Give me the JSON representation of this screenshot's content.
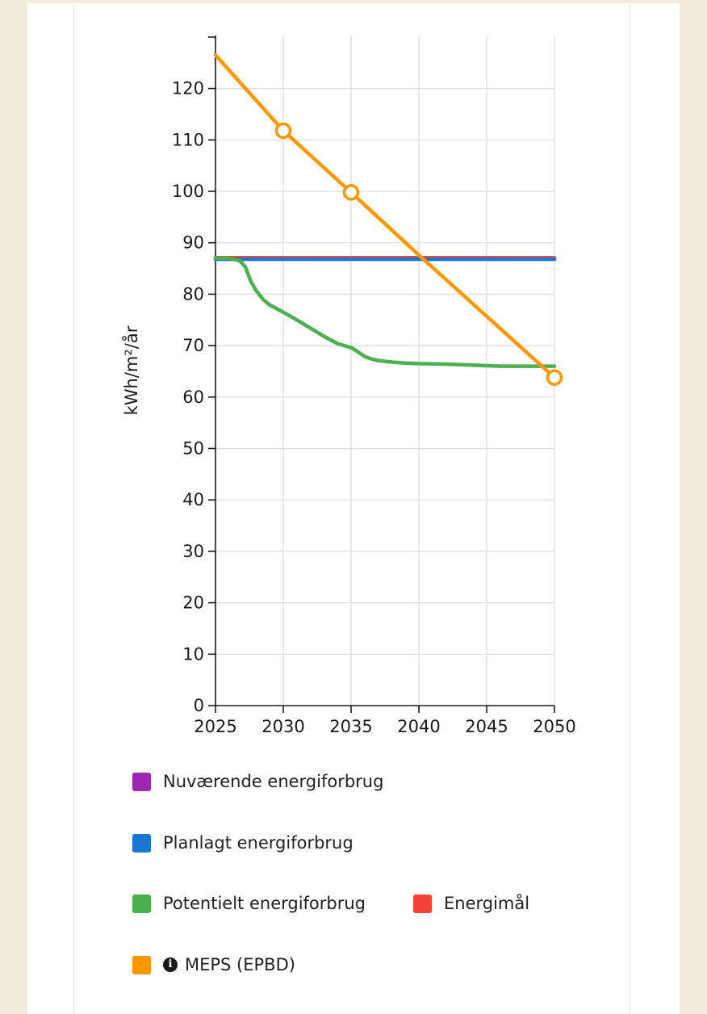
{
  "chart_data": {
    "type": "line",
    "title": "",
    "xlabel": "",
    "ylabel": "kWh/m²/år",
    "xlim": [
      2025,
      2050
    ],
    "ylim": [
      0,
      130
    ],
    "x_ticks": [
      2025,
      2030,
      2035,
      2040,
      2045,
      2050
    ],
    "y_ticks": [
      0,
      10,
      20,
      30,
      40,
      50,
      60,
      70,
      80,
      90,
      100,
      110,
      120
    ],
    "grid": true,
    "legend_position": "bottom",
    "series": [
      {
        "name": "Nuværende energiforbrug",
        "color": "#9c27b0",
        "x": [
          2025,
          2050
        ],
        "y": [
          87,
          87
        ]
      },
      {
        "name": "Planlagt energiforbrug",
        "color": "#1976d2",
        "x": [
          2025,
          2050
        ],
        "y": [
          86.8,
          86.8
        ]
      },
      {
        "name": "Potentielt energiforbrug",
        "color": "#4caf50",
        "x": [
          2025,
          2026,
          2026.8,
          2027.2,
          2027.6,
          2028,
          2028.5,
          2029,
          2030,
          2031,
          2032,
          2033,
          2034,
          2035,
          2035.5,
          2036,
          2036.5,
          2037,
          2038,
          2039,
          2040,
          2042,
          2044,
          2046,
          2048,
          2050
        ],
        "y": [
          87,
          87,
          86.5,
          85.3,
          82.5,
          80.7,
          79,
          77.9,
          76.5,
          75,
          73.4,
          71.8,
          70.4,
          69.6,
          68.8,
          67.9,
          67.4,
          67.1,
          66.8,
          66.6,
          66.5,
          66.4,
          66.2,
          66.0,
          66.0,
          66.0
        ]
      },
      {
        "name": "Energimål",
        "color": "#f44336",
        "x": [
          2025,
          2050
        ],
        "y": [
          87.1,
          87.1
        ]
      },
      {
        "name": "MEPS (EPBD)",
        "color": "#ff9800",
        "x": [
          2025,
          2030,
          2035,
          2040,
          2050
        ],
        "y": [
          126.5,
          111.8,
          99.8,
          87.6,
          63.8
        ],
        "markers": [
          2030,
          2035,
          2050
        ]
      }
    ]
  },
  "legend": {
    "items": [
      {
        "label": "Nuværende energiforbrug",
        "color": "#9c27b0"
      },
      {
        "label": "Planlagt energiforbrug",
        "color": "#1976d2"
      },
      {
        "label": "Potentielt energiforbrug",
        "color": "#4caf50"
      },
      {
        "label": "Energimål",
        "color": "#f44336"
      },
      {
        "label": "MEPS (EPBD)",
        "color": "#ff9800",
        "icon": "info-icon"
      }
    ],
    "info_glyph": "i"
  }
}
